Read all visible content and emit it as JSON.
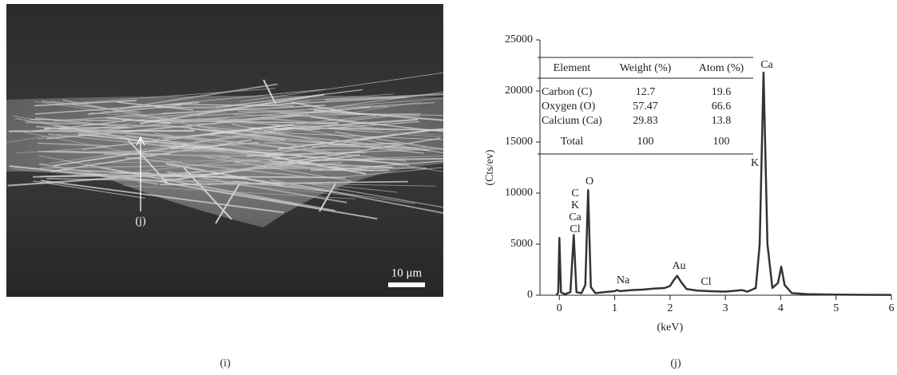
{
  "figure": {
    "sem_arrow_label": "(j)",
    "scale_bar_label": "10 μm",
    "captions": [
      "(i)",
      "(j)"
    ]
  },
  "chart_data": {
    "type": "line",
    "x_label": "(keV)",
    "y_label": "(Cts/ev)",
    "color": "#333333",
    "x": [
      -0.05,
      -0.02,
      0,
      0.03,
      0.1,
      0.2,
      0.26,
      0.31,
      0.4,
      0.47,
      0.52,
      0.57,
      0.65,
      0.8,
      1.0,
      1.04,
      1.1,
      1.3,
      1.5,
      1.7,
      1.9,
      2.0,
      2.07,
      2.13,
      2.2,
      2.3,
      2.5,
      2.7,
      3.0,
      3.3,
      3.4,
      3.55,
      3.62,
      3.69,
      3.76,
      3.85,
      3.95,
      4.01,
      4.07,
      4.2,
      4.5,
      5.0,
      5.5,
      6.0
    ],
    "values": [
      0,
      300,
      5600,
      300,
      100,
      300,
      5900,
      300,
      200,
      1000,
      10300,
      800,
      200,
      300,
      400,
      500,
      400,
      500,
      550,
      650,
      700,
      900,
      1500,
      1900,
      1300,
      600,
      450,
      400,
      350,
      500,
      350,
      700,
      5000,
      21800,
      5000,
      700,
      1200,
      2800,
      1000,
      200,
      100,
      60,
      40,
      30
    ],
    "xlim": [
      -0.35,
      6
    ],
    "xticks": [
      0,
      1,
      2,
      3,
      4,
      5,
      6
    ],
    "ylim": [
      0,
      25000
    ],
    "yticks": [
      0,
      5000,
      10000,
      15000,
      20000,
      25000
    ],
    "annotations": [
      "O",
      "C",
      "K",
      "Ca",
      "Cl",
      "Na",
      "Au",
      "Cl",
      "Ca",
      "K"
    ],
    "table": {
      "columns": [
        "Element",
        "Weight (%)",
        "Atom (%)"
      ],
      "rows": [
        [
          "Carbon (C)",
          12.7,
          19.6
        ],
        [
          "Oxygen (O)",
          57.47,
          66.6
        ],
        [
          "Calcium (Ca)",
          29.83,
          13.8
        ],
        [
          "Total",
          100,
          100
        ]
      ]
    }
  }
}
